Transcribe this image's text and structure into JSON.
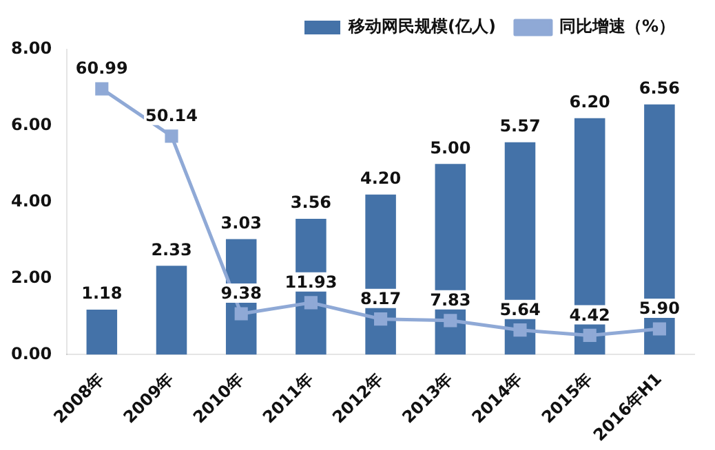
{
  "chart_data": {
    "type": "bar",
    "categories": [
      "2008年",
      "2009年",
      "2010年",
      "2011年",
      "2012年",
      "2013年",
      "2014年",
      "2015年",
      "2016年H1"
    ],
    "series": [
      {
        "name": "移动网民规模(亿人)",
        "color": "#4472a8",
        "values": [
          1.18,
          2.33,
          3.03,
          3.56,
          4.2,
          5.0,
          5.57,
          6.2,
          6.56
        ],
        "value_labels": [
          "1.18",
          "2.33",
          "3.03",
          "3.56",
          "4.20",
          "5.00",
          "5.57",
          "6.20",
          "6.56"
        ]
      },
      {
        "name": "同比增速（%）",
        "type": "line",
        "axis": "y2",
        "color": "#8fa9d6",
        "values": [
          60.99,
          50.14,
          9.38,
          11.93,
          8.17,
          7.83,
          5.64,
          4.42,
          5.9
        ],
        "value_labels": [
          "60.99",
          "50.14",
          "9.38",
          "11.93",
          "8.17",
          "7.83",
          "5.64",
          "4.42",
          "5.90"
        ]
      }
    ],
    "ylim": [
      0,
      8
    ],
    "yticks": [
      {
        "value": 0,
        "label": "0.00"
      },
      {
        "value": 2,
        "label": "2.00"
      },
      {
        "value": 4,
        "label": "4.00"
      },
      {
        "value": 6,
        "label": "6.00"
      },
      {
        "value": 8,
        "label": "8.00"
      }
    ],
    "y2lim": [
      0,
      70
    ],
    "legend": "top",
    "marker": "square",
    "grid": false
  }
}
